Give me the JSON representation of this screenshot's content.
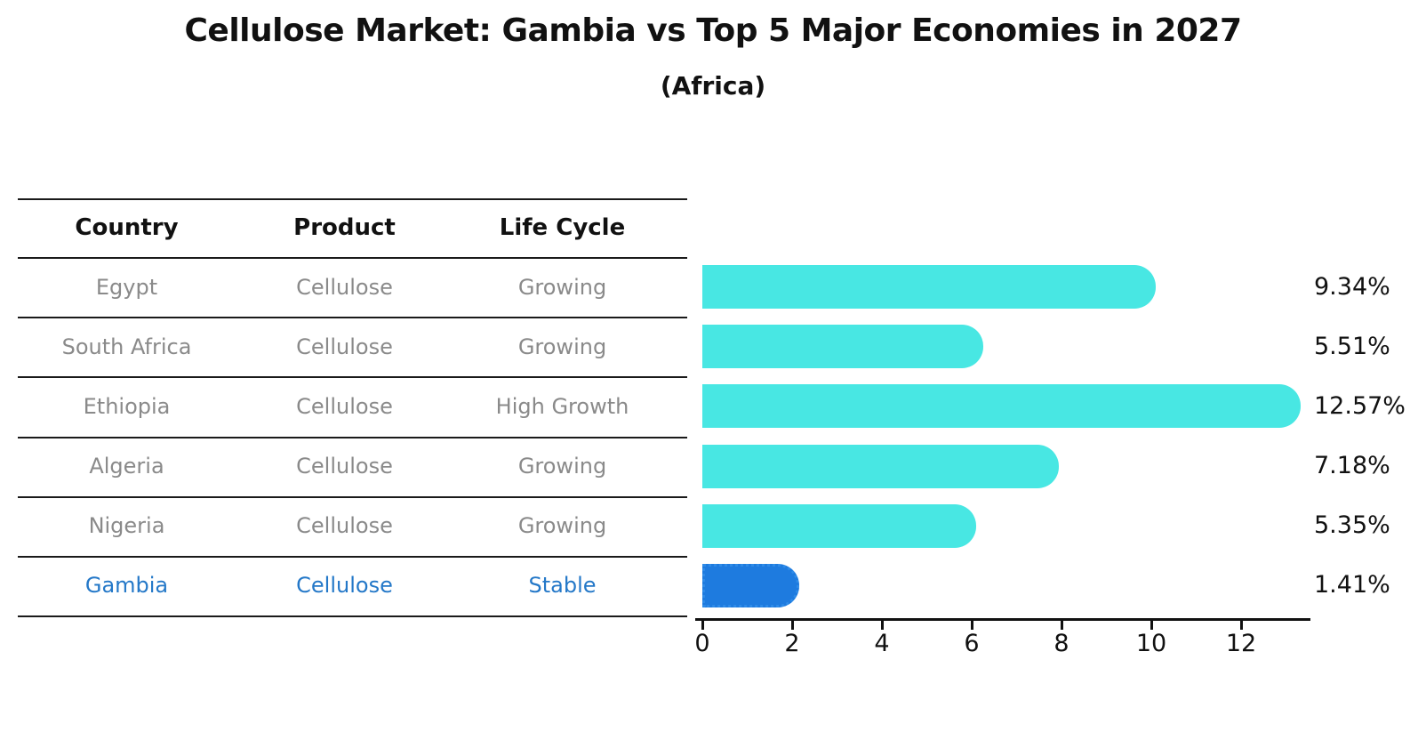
{
  "title": "Cellulose Market: Gambia vs Top 5 Major Economies in 2027",
  "subtitle": "(Africa)",
  "table": {
    "headers": [
      "Country",
      "Product",
      "Life Cycle"
    ],
    "rows": [
      {
        "country": "Egypt",
        "product": "Cellulose",
        "life_cycle": "Growing",
        "highlight": false
      },
      {
        "country": "South Africa",
        "product": "Cellulose",
        "life_cycle": "Growing",
        "highlight": false
      },
      {
        "country": "Ethiopia",
        "product": "Cellulose",
        "life_cycle": "High Growth",
        "highlight": false
      },
      {
        "country": "Algeria",
        "product": "Cellulose",
        "life_cycle": "Growing",
        "highlight": false
      },
      {
        "country": "Nigeria",
        "product": "Cellulose",
        "life_cycle": "Growing",
        "highlight": false
      },
      {
        "country": "Gambia",
        "product": "Cellulose",
        "life_cycle": "Stable",
        "highlight": true
      }
    ]
  },
  "chart_data": {
    "type": "bar",
    "orientation": "horizontal",
    "title": "Cellulose Market: Gambia vs Top 5 Major Economies in 2027 (Africa)",
    "categories": [
      "Egypt",
      "South Africa",
      "Ethiopia",
      "Algeria",
      "Nigeria",
      "Gambia"
    ],
    "values": [
      9.34,
      5.51,
      12.57,
      7.18,
      5.35,
      1.41
    ],
    "value_labels": [
      "9.34%",
      "5.51%",
      "12.57%",
      "7.18%",
      "5.35%",
      "1.41%"
    ],
    "unit": "%",
    "x_ticks": [
      0,
      2,
      4,
      6,
      8,
      10,
      12
    ],
    "xlim": [
      0,
      13.5
    ],
    "grid": false,
    "legend": "none",
    "colors": {
      "default_bar": "#48E7E3",
      "highlight_bar": "#1E7BDF",
      "highlight_bar_edge": "#2E8BE8",
      "highlight_text": "#2478C8",
      "row_text": "#8A8A8A",
      "header_text": "#111111",
      "axis": "#111111"
    }
  }
}
